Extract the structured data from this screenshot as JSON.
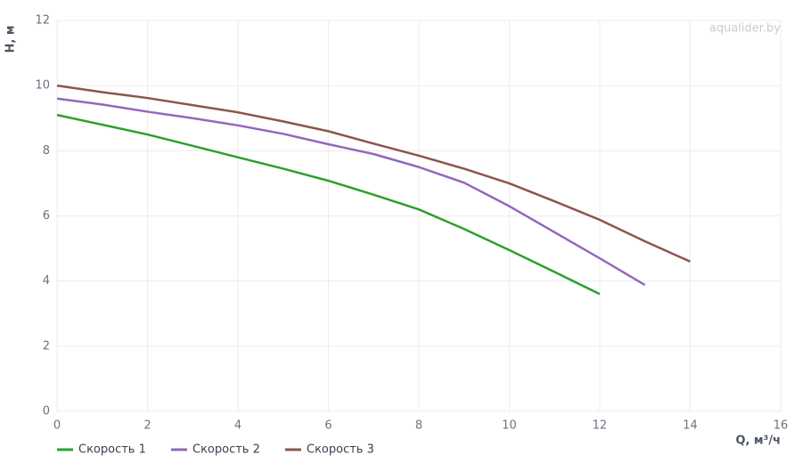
{
  "chart_data": {
    "type": "line",
    "watermark": "aqualider.by",
    "x_label": "Q, м³/ч",
    "y_label": "H, м",
    "xlim": [
      0,
      16
    ],
    "xticks": [
      0,
      2,
      4,
      6,
      8,
      10,
      12,
      14,
      16
    ],
    "ylim": [
      0,
      12
    ],
    "yticks": [
      0,
      2,
      4,
      6,
      8,
      10,
      12
    ],
    "grid": true,
    "legend": "bottom-left",
    "series": [
      {
        "name": "Скорость 1",
        "color": "#2ca02c",
        "x": [
          0,
          1,
          2,
          3,
          4,
          5,
          6,
          7,
          8,
          9,
          10,
          11,
          12
        ],
        "values": [
          9.1,
          8.8,
          8.5,
          8.15,
          7.8,
          7.45,
          7.08,
          6.65,
          6.2,
          5.6,
          4.95,
          4.28,
          3.6
        ]
      },
      {
        "name": "Скорость 2",
        "color": "#9467bd",
        "x": [
          0,
          1,
          2,
          3,
          4,
          5,
          6,
          7,
          8,
          9,
          10,
          11,
          12,
          13
        ],
        "values": [
          9.6,
          9.42,
          9.2,
          9.0,
          8.78,
          8.52,
          8.2,
          7.9,
          7.5,
          7.02,
          6.3,
          5.5,
          4.7,
          3.88
        ]
      },
      {
        "name": "Скорость 3",
        "color": "#8c564b",
        "x": [
          0,
          1,
          2,
          3,
          4,
          5,
          6,
          7,
          8,
          9,
          10,
          11,
          12,
          13,
          14
        ],
        "values": [
          10.0,
          9.8,
          9.62,
          9.4,
          9.18,
          8.9,
          8.6,
          8.22,
          7.85,
          7.45,
          7.0,
          6.45,
          5.88,
          5.22,
          4.6
        ]
      }
    ]
  }
}
